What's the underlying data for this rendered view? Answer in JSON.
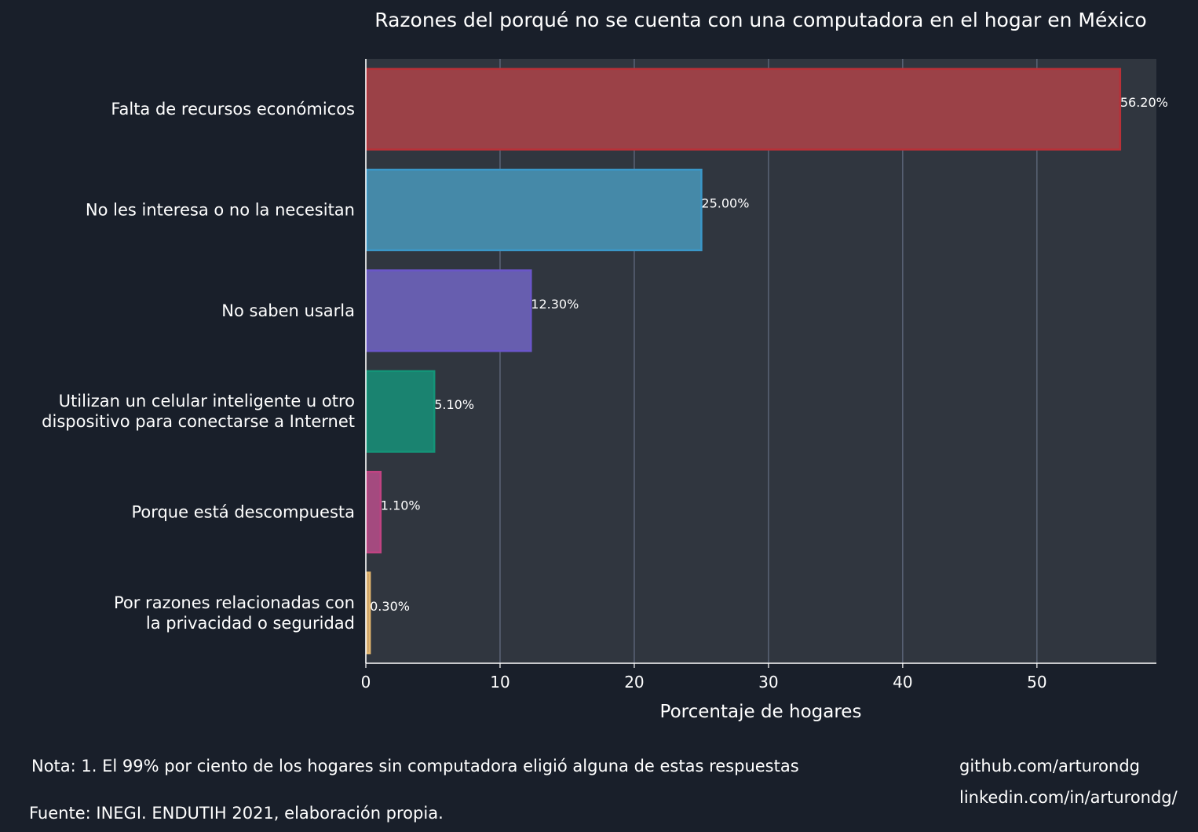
{
  "chart_data": {
    "type": "bar",
    "orientation": "horizontal",
    "title": "Razones del porqué no se cuenta con una computadora en el hogar en México",
    "xlabel": "Porcentaje de hogares",
    "ylabel": "",
    "xlim": [
      0,
      58.9
    ],
    "xticks": [
      0,
      10,
      20,
      30,
      40,
      50
    ],
    "grid": "vertical",
    "categories": [
      [
        "Falta de recursos económicos"
      ],
      [
        "No les interesa o no la necesitan"
      ],
      [
        "No saben usarla"
      ],
      [
        "Utilizan un celular inteligente u otro",
        "dispositivo para conectarse a Internet"
      ],
      [
        "Porque está descompuesta"
      ],
      [
        "Por razones relacionadas con",
        "la privacidad o seguridad"
      ]
    ],
    "values": [
      56.2,
      25.0,
      12.3,
      5.1,
      1.1,
      0.3
    ],
    "data_labels": [
      "56.20%",
      "25.00%",
      "12.30%",
      "5.10%",
      "1.10%",
      "0.30%"
    ],
    "colors": {
      "fill": [
        "#9b4147",
        "#4589a8",
        "#675eaf",
        "#1a8370",
        "#a44a7f",
        "#c9a26e"
      ],
      "edge": [
        "#b83138",
        "#3a97c8",
        "#6a56c8",
        "#149478",
        "#c04382",
        "#e3b66e"
      ],
      "plot_background": "#30363f",
      "page_background": "#191f2a",
      "grid": "#6f7a91"
    }
  },
  "footer": {
    "note": "Nota: 1. El 99% por ciento de los hogares sin computadora eligió alguna de estas respuestas",
    "source": "Fuente: INEGI. ENDUTIH 2021, elaboración propia.",
    "github": "github.com/arturondg",
    "linkedin": "linkedin.com/in/arturondg/"
  }
}
